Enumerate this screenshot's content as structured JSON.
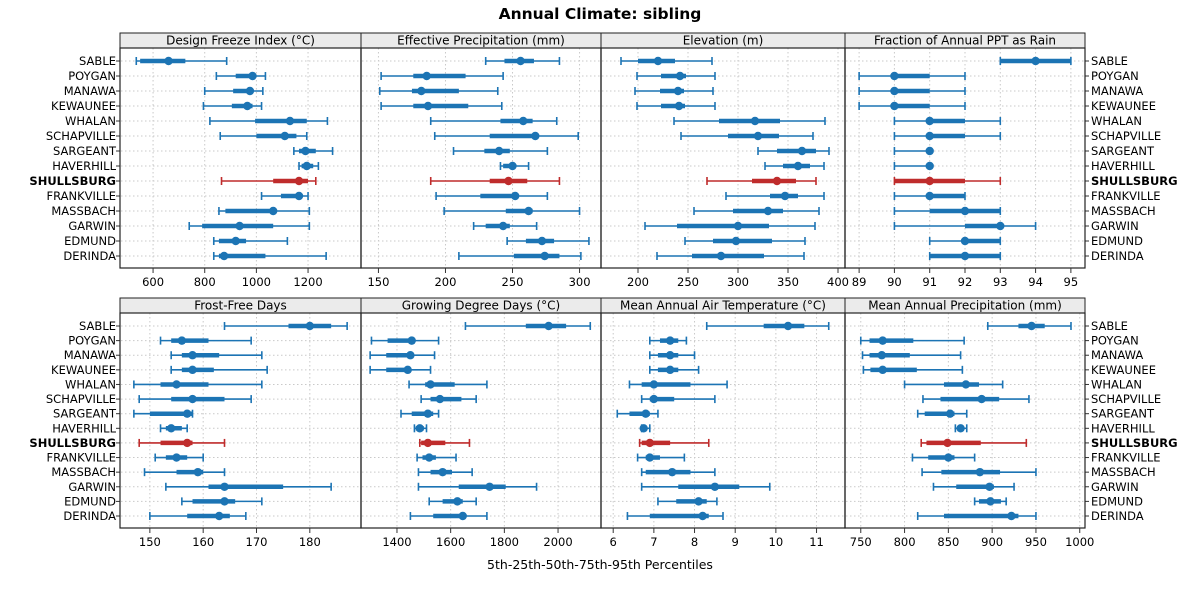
{
  "title": "Annual Climate: sibling",
  "caption": "5th-25th-50th-75th-95th Percentiles",
  "colors": {
    "series": "#1c74b4",
    "highlight": "#bf2c2c",
    "strip_bg": "#ebebeb",
    "panel_border": "#222222",
    "grid": "#c9c9c9",
    "tick": "#333333"
  },
  "highlight_site": "SHULLSBURG",
  "chart_data": {
    "type": "dotplot-percentiles",
    "title": "Annual Climate: sibling",
    "xlabel": "5th-25th-50th-75th-95th Percentiles",
    "percentile_labels": [
      "5th",
      "25th",
      "50th",
      "75th",
      "95th"
    ],
    "legend_position": "none",
    "grid": "dotted",
    "rows": [
      "SABLE",
      "POYGAN",
      "MANAWA",
      "KEWAUNEE",
      "WHALAN",
      "SCHAPVILLE",
      "SARGEANT",
      "HAVERHILL",
      "SHULLSBURG",
      "FRANKVILLE",
      "MASSBACH",
      "GARWIN",
      "EDMUND",
      "DERINDA"
    ],
    "panels": [
      {
        "title": "Design Freeze Index (°C)",
        "grid_row": 0,
        "grid_col": 0,
        "ticks": [
          600,
          800,
          1000,
          1200
        ],
        "xlim": [
          472,
          1405
        ],
        "values": [
          [
            535,
            550,
            660,
            725,
            885
          ],
          [
            845,
            920,
            985,
            995,
            1035
          ],
          [
            800,
            910,
            975,
            985,
            1025
          ],
          [
            795,
            905,
            965,
            985,
            1020
          ],
          [
            820,
            995,
            1130,
            1195,
            1275
          ],
          [
            860,
            1000,
            1110,
            1155,
            1195
          ],
          [
            1145,
            1165,
            1190,
            1230,
            1295
          ],
          [
            1165,
            1175,
            1195,
            1220,
            1240
          ],
          [
            865,
            1065,
            1165,
            1200,
            1230
          ],
          [
            1020,
            1095,
            1165,
            1175,
            1200
          ],
          [
            855,
            880,
            1065,
            1075,
            1205
          ],
          [
            740,
            790,
            935,
            1065,
            1205
          ],
          [
            835,
            855,
            920,
            960,
            1120
          ],
          [
            835,
            855,
            875,
            1035,
            1270
          ]
        ]
      },
      {
        "title": "Effective Precipitation (mm)",
        "grid_row": 0,
        "grid_col": 1,
        "ticks": [
          150,
          200,
          250,
          300
        ],
        "xlim": [
          137,
          316
        ],
        "values": [
          [
            230,
            244,
            256,
            266,
            285
          ],
          [
            152,
            176,
            186,
            215,
            243
          ],
          [
            151,
            175,
            182,
            210,
            239
          ],
          [
            152,
            176,
            187,
            217,
            242
          ],
          [
            189,
            241,
            258,
            265,
            283
          ],
          [
            192,
            233,
            267,
            269,
            299
          ],
          [
            206,
            229,
            240,
            248,
            276
          ],
          [
            241,
            243,
            250,
            252,
            262
          ],
          [
            189,
            233,
            247,
            261,
            285
          ],
          [
            193,
            226,
            252,
            254,
            276
          ],
          [
            199,
            245,
            262,
            265,
            300
          ],
          [
            221,
            230,
            243,
            248,
            268
          ],
          [
            246,
            260,
            272,
            281,
            307
          ],
          [
            210,
            251,
            274,
            285,
            301
          ]
        ]
      },
      {
        "title": "Elevation (m)",
        "grid_row": 0,
        "grid_col": 2,
        "ticks": [
          200,
          250,
          300,
          350,
          400
        ],
        "xlim": [
          163,
          407
        ],
        "values": [
          [
            183,
            200,
            220,
            237,
            274
          ],
          [
            199,
            223,
            242,
            248,
            277
          ],
          [
            197,
            222,
            240,
            246,
            275
          ],
          [
            199,
            223,
            241,
            247,
            277
          ],
          [
            236,
            281,
            317,
            342,
            387
          ],
          [
            243,
            290,
            320,
            341,
            375
          ],
          [
            320,
            339,
            364,
            378,
            391
          ],
          [
            327,
            345,
            360,
            372,
            386
          ],
          [
            269,
            314,
            339,
            358,
            378
          ],
          [
            288,
            332,
            347,
            360,
            386
          ],
          [
            256,
            295,
            330,
            345,
            381
          ],
          [
            207,
            239,
            300,
            331,
            377
          ],
          [
            247,
            275,
            298,
            334,
            367
          ],
          [
            219,
            254,
            283,
            326,
            366
          ]
        ]
      },
      {
        "title": "Fraction of Annual PPT as Rain",
        "grid_row": 0,
        "grid_col": 3,
        "ticks": [
          89,
          90,
          91,
          92,
          93,
          94,
          95
        ],
        "xlim": [
          88.6,
          95.4
        ],
        "values": [
          [
            93,
            93,
            94,
            95,
            95
          ],
          [
            89,
            90,
            90,
            91,
            92
          ],
          [
            89,
            90,
            90,
            91,
            92
          ],
          [
            89,
            90,
            90,
            91,
            92
          ],
          [
            90,
            91,
            91,
            92,
            93
          ],
          [
            90,
            91,
            91,
            92,
            93
          ],
          [
            90,
            91,
            91,
            91,
            91
          ],
          [
            90,
            91,
            91,
            91,
            91
          ],
          [
            90,
            90,
            91,
            92,
            93
          ],
          [
            90,
            91,
            91,
            92,
            92
          ],
          [
            90,
            91,
            92,
            93,
            93
          ],
          [
            90,
            92,
            93,
            93,
            94
          ],
          [
            91,
            92,
            92,
            93,
            93
          ],
          [
            91,
            91,
            92,
            93,
            93
          ]
        ]
      },
      {
        "title": "Frost-Free Days",
        "grid_row": 1,
        "grid_col": 0,
        "ticks": [
          150,
          160,
          170,
          180
        ],
        "xlim": [
          144.4,
          189.6
        ],
        "values": [
          [
            164,
            176,
            180,
            184,
            187
          ],
          [
            152,
            154,
            156,
            161,
            169
          ],
          [
            154,
            156,
            158,
            163,
            171
          ],
          [
            154,
            156,
            158,
            162,
            172
          ],
          [
            147,
            152,
            155,
            161,
            171
          ],
          [
            148,
            154,
            158,
            164,
            169
          ],
          [
            147,
            150,
            157,
            158,
            158
          ],
          [
            152,
            153,
            154,
            156,
            157
          ],
          [
            148,
            152,
            157,
            158,
            164
          ],
          [
            151,
            153,
            155,
            157,
            160
          ],
          [
            149,
            155,
            159,
            160,
            164
          ],
          [
            153,
            161,
            164,
            175,
            184
          ],
          [
            156,
            158,
            164,
            166,
            171
          ],
          [
            150,
            157,
            163,
            165,
            168
          ]
        ]
      },
      {
        "title": "Growing Degree Days (°C)",
        "grid_row": 1,
        "grid_col": 1,
        "ticks": [
          1400,
          1600,
          1800,
          2000
        ],
        "xlim": [
          1266,
          2160
        ],
        "values": [
          [
            1655,
            1880,
            1965,
            2030,
            2120
          ],
          [
            1305,
            1365,
            1455,
            1465,
            1555
          ],
          [
            1300,
            1360,
            1450,
            1455,
            1540
          ],
          [
            1300,
            1360,
            1440,
            1450,
            1525
          ],
          [
            1445,
            1505,
            1525,
            1615,
            1735
          ],
          [
            1490,
            1525,
            1560,
            1640,
            1695
          ],
          [
            1415,
            1455,
            1515,
            1535,
            1555
          ],
          [
            1465,
            1470,
            1485,
            1500,
            1510
          ],
          [
            1485,
            1490,
            1515,
            1580,
            1670
          ],
          [
            1475,
            1495,
            1520,
            1545,
            1620
          ],
          [
            1480,
            1525,
            1570,
            1605,
            1680
          ],
          [
            1480,
            1630,
            1745,
            1805,
            1920
          ],
          [
            1520,
            1570,
            1625,
            1645,
            1695
          ],
          [
            1450,
            1535,
            1645,
            1655,
            1735
          ]
        ]
      },
      {
        "title": "Mean Annual Air Temperature (°C)",
        "grid_row": 1,
        "grid_col": 2,
        "ticks": [
          6,
          7,
          8,
          9,
          10,
          11
        ],
        "xlim": [
          5.7,
          11.7
        ],
        "values": [
          [
            8.3,
            9.7,
            10.3,
            10.7,
            11.3
          ],
          [
            6.9,
            7.15,
            7.4,
            7.6,
            7.8
          ],
          [
            6.9,
            7.1,
            7.4,
            7.6,
            8.0
          ],
          [
            6.9,
            7.1,
            7.4,
            7.6,
            8.1
          ],
          [
            6.4,
            6.7,
            7.0,
            7.9,
            8.8
          ],
          [
            6.7,
            6.9,
            7.0,
            7.5,
            8.5
          ],
          [
            6.1,
            6.4,
            6.8,
            6.9,
            7.1
          ],
          [
            6.7,
            6.72,
            6.75,
            6.8,
            6.9
          ],
          [
            6.65,
            6.7,
            6.9,
            7.4,
            8.35
          ],
          [
            6.6,
            6.8,
            6.9,
            7.15,
            7.75
          ],
          [
            6.7,
            6.8,
            7.45,
            7.9,
            8.5
          ],
          [
            6.7,
            7.6,
            8.5,
            9.1,
            9.85
          ],
          [
            7.1,
            7.55,
            8.1,
            8.3,
            8.55
          ],
          [
            6.35,
            6.9,
            8.2,
            8.35,
            8.7
          ]
        ]
      },
      {
        "title": "Mean Annual Precipitation (mm)",
        "grid_row": 1,
        "grid_col": 3,
        "ticks": [
          750,
          800,
          850,
          900,
          950,
          1000
        ],
        "xlim": [
          732,
          1006
        ],
        "values": [
          [
            895,
            930,
            945,
            960,
            990
          ],
          [
            750,
            760,
            775,
            810,
            868
          ],
          [
            752,
            760,
            774,
            806,
            864
          ],
          [
            753,
            761,
            775,
            814,
            866
          ],
          [
            800,
            845,
            870,
            885,
            912
          ],
          [
            821,
            841,
            888,
            908,
            942
          ],
          [
            815,
            823,
            852,
            857,
            871
          ],
          [
            858,
            860,
            864,
            867,
            871
          ],
          [
            819,
            825,
            849,
            887,
            939
          ],
          [
            809,
            827,
            850,
            857,
            880
          ],
          [
            820,
            842,
            886,
            909,
            950
          ],
          [
            833,
            859,
            897,
            902,
            925
          ],
          [
            880,
            885,
            898,
            910,
            916
          ],
          [
            815,
            845,
            922,
            930,
            950
          ]
        ]
      }
    ]
  }
}
